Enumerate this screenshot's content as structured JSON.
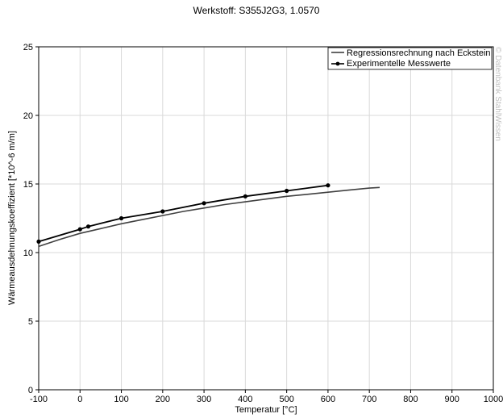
{
  "chart_data": {
    "type": "line",
    "title": "Werkstoff: S355J2G3, 1.0570",
    "xlabel": "Temperatur [°C]",
    "ylabel": "Wärmeausdehnungskoeffizient [*10^-6 m/m]",
    "xlim": [
      -100,
      1000
    ],
    "ylim": [
      0,
      25
    ],
    "x_ticks": [
      -100,
      0,
      100,
      200,
      300,
      400,
      500,
      600,
      700,
      800,
      900,
      1000
    ],
    "y_ticks": [
      0,
      5,
      10,
      15,
      20,
      25
    ],
    "grid": true,
    "legend_position": "top-right",
    "series": [
      {
        "name": "Regressionsrechnung nach Eckstein",
        "color": "#404040",
        "markers": false,
        "x": [
          -100,
          -50,
          0,
          50,
          100,
          150,
          200,
          250,
          300,
          350,
          400,
          450,
          500,
          550,
          600,
          650,
          700,
          725
        ],
        "y": [
          10.45,
          10.95,
          11.4,
          11.75,
          12.1,
          12.4,
          12.7,
          13.0,
          13.25,
          13.5,
          13.7,
          13.9,
          14.1,
          14.25,
          14.4,
          14.55,
          14.7,
          14.75
        ]
      },
      {
        "name": "Experimentelle Messwerte",
        "color": "#000000",
        "markers": true,
        "x": [
          -100,
          0,
          20,
          100,
          200,
          300,
          400,
          500,
          600
        ],
        "y": [
          10.8,
          11.7,
          11.9,
          12.5,
          13.0,
          13.6,
          14.1,
          14.5,
          14.9
        ]
      }
    ]
  },
  "watermark": "© Datenbank StahlWissen"
}
